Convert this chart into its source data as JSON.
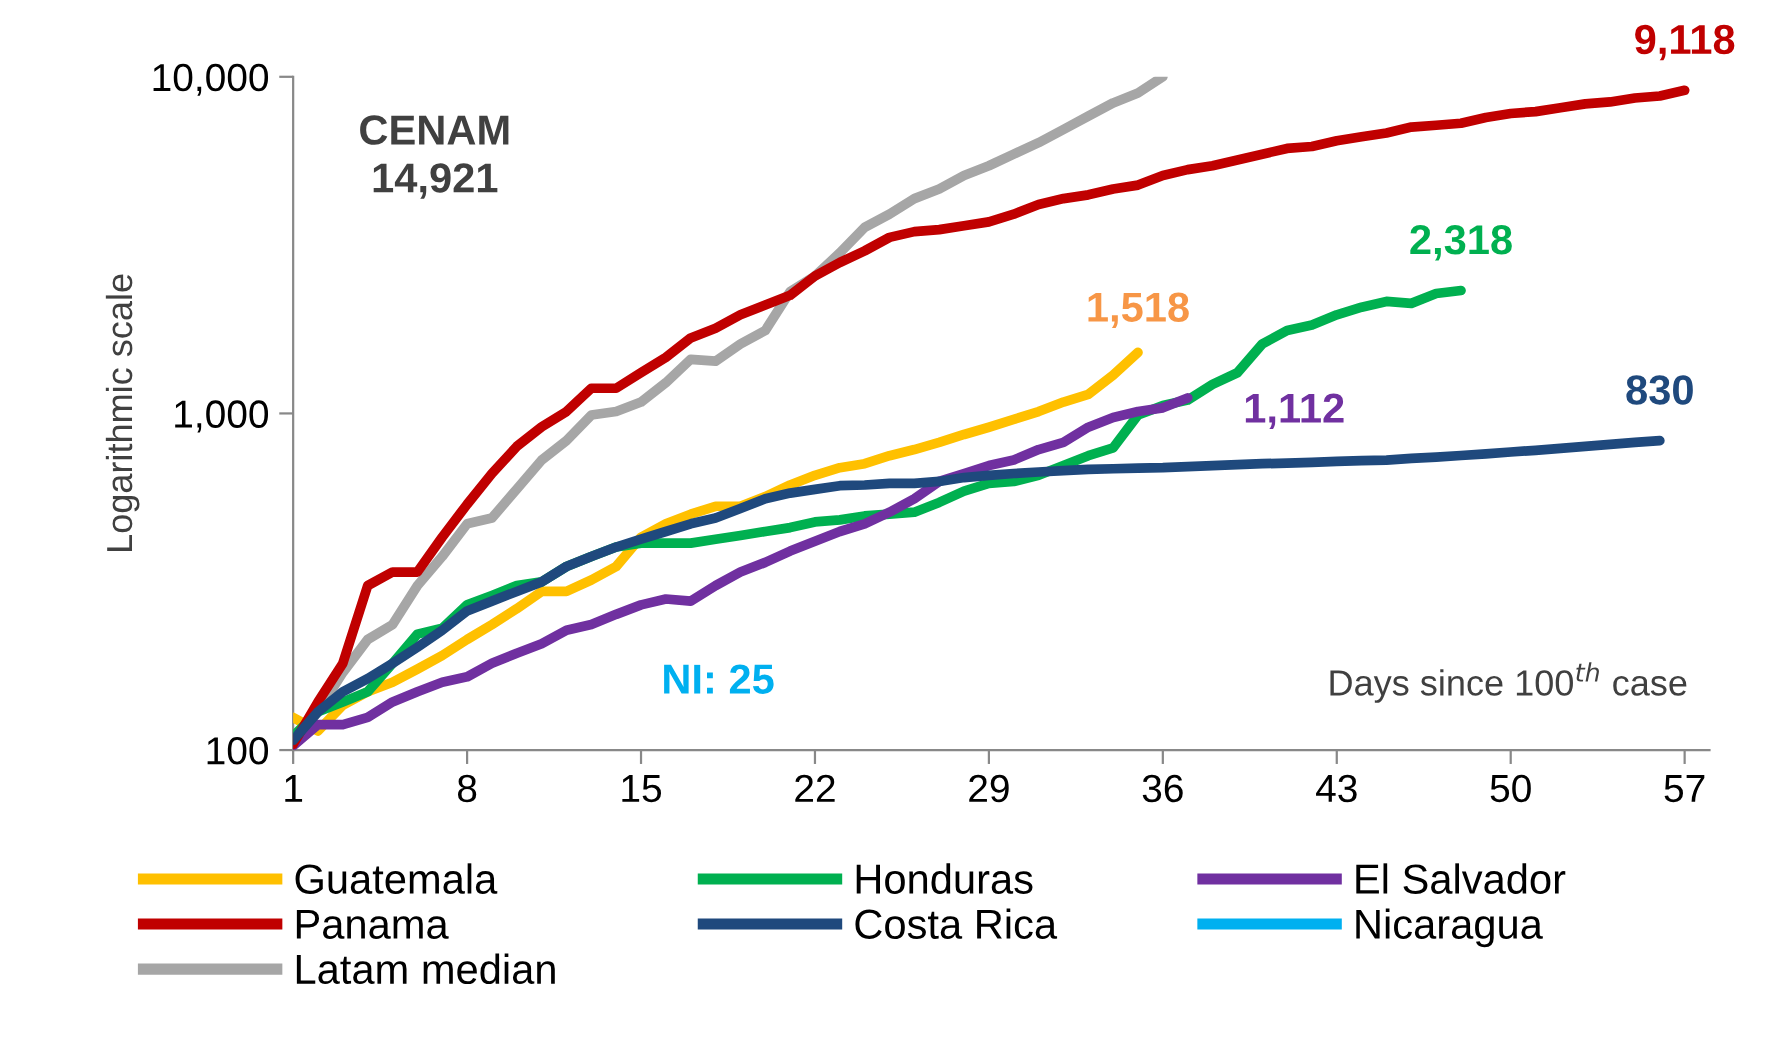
{
  "chart_data": {
    "type": "line",
    "xlabel": "Days since 100$^{th}$ case",
    "ylabel": "Logarithmic scale",
    "log": true,
    "x": [
      1,
      2,
      3,
      4,
      5,
      6,
      7,
      8,
      9,
      10,
      11,
      12,
      13,
      14,
      15,
      16,
      17,
      18,
      19,
      20,
      21,
      22,
      23,
      24,
      25,
      26,
      27,
      28,
      29,
      30,
      31,
      32,
      33,
      34,
      35,
      36,
      37,
      38,
      39,
      40,
      41,
      42,
      43,
      44,
      45,
      46,
      47,
      48,
      49,
      50,
      51,
      52,
      53,
      54,
      55,
      56,
      57
    ],
    "xlim": [
      1,
      58
    ],
    "xticks": [
      1,
      8,
      15,
      22,
      29,
      36,
      43,
      50,
      57
    ],
    "ylim": [
      100,
      10000
    ],
    "yticks": [
      {
        "value": 100,
        "label": "100"
      },
      {
        "value": 1000,
        "label": "1,000"
      },
      {
        "value": 10000,
        "label": "10,000"
      }
    ],
    "grid": false,
    "legend": "bottom",
    "marker": "none",
    "line_style": "solid",
    "series": [
      {
        "name": "Guatemala",
        "color": "#ffc000",
        "values": [
          125,
          114,
          136,
          149,
          159,
          174,
          191,
          213,
          236,
          263,
          296,
          296,
          320,
          351,
          429,
          470,
          502,
          530,
          530,
          566,
          613,
          655,
          690,
          709,
          749,
          781,
          820,
          866,
          910,
          960,
          1013,
          1081,
          1140,
          1300,
          1518,
          null,
          null,
          null,
          null,
          null,
          null,
          null,
          null,
          null,
          null,
          null,
          null,
          null,
          null,
          null,
          null,
          null,
          null,
          null,
          null,
          null,
          null
        ],
        "value_labels": [
          null,
          null,
          null,
          null,
          null,
          null,
          null,
          null,
          null,
          null,
          null,
          null,
          null,
          null,
          null,
          null,
          null,
          null,
          null,
          null,
          null,
          null,
          null,
          null,
          null,
          null,
          null,
          null,
          null,
          null,
          null,
          null,
          null,
          null,
          "1,518",
          null,
          null,
          null,
          null,
          null,
          null,
          null,
          null,
          null,
          null,
          null,
          null,
          null,
          null,
          null,
          null,
          null,
          null,
          null,
          null,
          null,
          null
        ]
      },
      {
        "name": "Honduras",
        "color": "#00b050",
        "values": [
          110,
          130,
          139,
          149,
          181,
          221,
          230,
          270,
          288,
          308,
          316,
          351,
          376,
          401,
          412,
          412,
          412,
          423,
          434,
          446,
          458,
          476,
          483,
          496,
          502,
          509,
          544,
          588,
          620,
          628,
          655,
          700,
          749,
          790,
          989,
          1055,
          1096,
          1220,
          1321,
          1608,
          1763,
          1831,
          1963,
          2068,
          2151,
          2123,
          2271,
          2318,
          null,
          null,
          null,
          null,
          null,
          null,
          null,
          null,
          null
        ],
        "value_labels": [
          null,
          null,
          null,
          null,
          null,
          null,
          null,
          null,
          null,
          null,
          null,
          null,
          null,
          null,
          null,
          null,
          null,
          null,
          null,
          null,
          null,
          null,
          null,
          null,
          null,
          null,
          null,
          null,
          null,
          null,
          null,
          null,
          null,
          null,
          null,
          null,
          null,
          null,
          null,
          null,
          null,
          null,
          null,
          null,
          null,
          null,
          null,
          "2,318",
          null,
          null,
          null,
          null,
          null,
          null,
          null,
          null,
          null
        ]
      },
      {
        "name": "El Salvador",
        "color": "#7030a0",
        "values": [
          103,
          119,
          119,
          125,
          139,
          149,
          159,
          165,
          181,
          194,
          207,
          227,
          236,
          253,
          270,
          281,
          277,
          308,
          338,
          361,
          390,
          417,
          446,
          470,
          509,
          558,
          628,
          663,
          700,
          727,
          781,
          820,
          910,
          972,
          1013,
          1039,
          1112,
          null,
          null,
          null,
          null,
          null,
          null,
          null,
          null,
          null,
          null,
          null,
          null,
          null,
          null,
          null,
          null,
          null,
          null,
          null,
          null
        ],
        "value_labels": [
          null,
          null,
          null,
          null,
          null,
          null,
          null,
          null,
          null,
          null,
          null,
          null,
          null,
          null,
          null,
          null,
          null,
          null,
          null,
          null,
          null,
          null,
          null,
          null,
          null,
          null,
          null,
          null,
          null,
          null,
          null,
          null,
          null,
          null,
          null,
          null,
          "1,112",
          null,
          null,
          null,
          null,
          null,
          null,
          null,
          null,
          null,
          null,
          null,
          null,
          null,
          null,
          null,
          null,
          null,
          null,
          null,
          null
        ]
      },
      {
        "name": "Panama",
        "color": "#c00000",
        "values": [
          104,
          139,
          181,
          308,
          338,
          338,
          429,
          537,
          663,
          798,
          912,
          1013,
          1188,
          1188,
          1321,
          1468,
          1676,
          1791,
          1963,
          2099,
          2243,
          2560,
          2808,
          3040,
          3334,
          3468,
          3516,
          3610,
          3707,
          3908,
          4177,
          4347,
          4460,
          4642,
          4768,
          5094,
          5300,
          5443,
          5662,
          5891,
          6126,
          6207,
          6457,
          6633,
          6810,
          7090,
          7180,
          7278,
          7570,
          7780,
          7880,
          8094,
          8310,
          8420,
          8650,
          8770,
          9118
        ],
        "value_labels": [
          null,
          null,
          null,
          null,
          null,
          null,
          null,
          null,
          null,
          null,
          null,
          null,
          null,
          null,
          null,
          null,
          null,
          null,
          null,
          null,
          null,
          null,
          null,
          null,
          null,
          null,
          null,
          null,
          null,
          null,
          null,
          null,
          null,
          null,
          null,
          null,
          null,
          null,
          null,
          null,
          null,
          null,
          null,
          null,
          null,
          null,
          null,
          null,
          null,
          null,
          null,
          null,
          null,
          null,
          null,
          null,
          "9,118"
        ]
      },
      {
        "name": "Costa Rica",
        "color": "#1f497d",
        "values": [
          107,
          130,
          149,
          163,
          181,
          202,
          227,
          259,
          277,
          296,
          316,
          351,
          376,
          401,
          423,
          446,
          470,
          489,
          522,
          558,
          580,
          595,
          610,
          613,
          620,
          620,
          628,
          645,
          655,
          663,
          670,
          676,
          682,
          685,
          688,
          690,
          695,
          700,
          705,
          709,
          712,
          716,
          720,
          724,
          727,
          735,
          742,
          750,
          758,
          768,
          777,
          787,
          798,
          809,
          820,
          830,
          null
        ],
        "value_labels": [
          null,
          null,
          null,
          null,
          null,
          null,
          null,
          null,
          null,
          null,
          null,
          null,
          null,
          null,
          null,
          null,
          null,
          null,
          null,
          null,
          null,
          null,
          null,
          null,
          null,
          null,
          null,
          null,
          null,
          null,
          null,
          null,
          null,
          null,
          null,
          null,
          null,
          null,
          null,
          null,
          null,
          null,
          null,
          null,
          null,
          null,
          null,
          null,
          null,
          null,
          null,
          null,
          null,
          null,
          null,
          "830",
          null
        ]
      },
      {
        "name": "Nicaragua",
        "color": "#00b0f0",
        "values": [
          null,
          null,
          null,
          null,
          null,
          null,
          null,
          null,
          null,
          null,
          null,
          null,
          null,
          null,
          null,
          null,
          null,
          null,
          null,
          null,
          null,
          null,
          null,
          null,
          null,
          null,
          null,
          null,
          null,
          null,
          null,
          null,
          null,
          null,
          null,
          null,
          null,
          null,
          null,
          null,
          null,
          null,
          null,
          null,
          null,
          null,
          null,
          null,
          null,
          null,
          null,
          null,
          null,
          null,
          null,
          null,
          null
        ]
      },
      {
        "name": "Latam median",
        "color": "#a6a6a6",
        "values": [
          107,
          130,
          170,
          213,
          236,
          308,
          376,
          470,
          489,
          596,
          727,
          830,
          989,
          1013,
          1081,
          1234,
          1448,
          1430,
          1608,
          1763,
          2301,
          2560,
          2998,
          3570,
          3908,
          4347,
          4642,
          5094,
          5443,
          5891,
          6372,
          6975,
          7640,
          8364,
          8950,
          10000,
          null,
          null,
          null,
          null,
          null,
          null,
          null,
          null,
          null,
          null,
          null,
          null,
          null,
          null,
          null,
          null,
          null,
          null,
          null,
          null,
          null
        ]
      }
    ],
    "annotations": [
      "CENAM\n14,921",
      "NI: 25"
    ]
  }
}
